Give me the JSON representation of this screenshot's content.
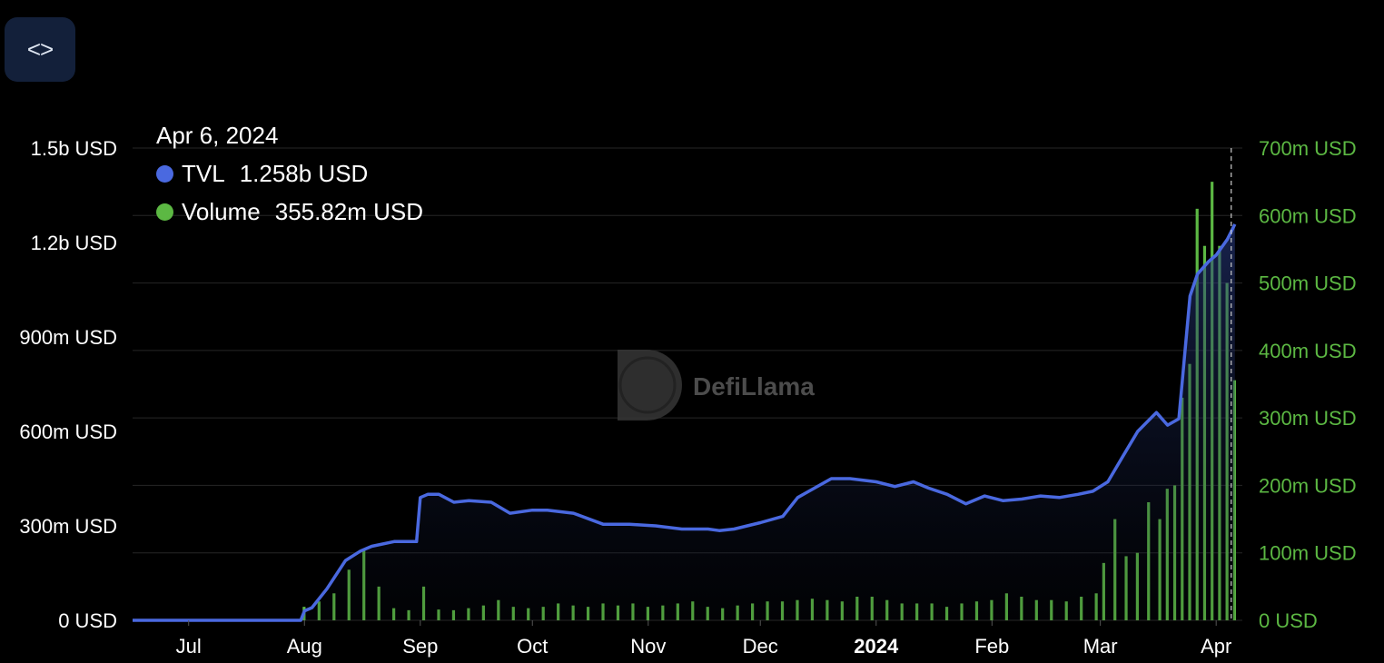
{
  "embed_button": {
    "label": "<>",
    "icon": "code-brackets-icon"
  },
  "tooltip": {
    "date": "Apr 6, 2024",
    "items": [
      {
        "label": "TVL",
        "value": "1.258b USD",
        "color": "#4a69e0"
      },
      {
        "label": "Volume",
        "value": "355.82m USD",
        "color": "#5cb843"
      }
    ]
  },
  "watermark": {
    "text": "DefiLlama"
  },
  "chart_data": {
    "type": "line+bar",
    "x_ticks": [
      "Jul",
      "Aug",
      "Sep",
      "Oct",
      "Nov",
      "Dec",
      "2024",
      "Feb",
      "Mar",
      "Apr"
    ],
    "left_axis": {
      "ticks": [
        "0 USD",
        "300m USD",
        "600m USD",
        "900m USD",
        "1.2b USD",
        "1.5b USD"
      ],
      "ylim": [
        0,
        1500
      ]
    },
    "right_axis": {
      "ticks": [
        "0 USD",
        "100m USD",
        "200m USD",
        "300m USD",
        "400m USD",
        "500m USD",
        "600m USD",
        "700m USD"
      ],
      "ylim": [
        0,
        700
      ]
    },
    "grid": true,
    "series": [
      {
        "name": "TVL",
        "type": "line",
        "color": "#4a69e0",
        "unit": "m USD",
        "x": [
          "2023-06-16",
          "2023-07-31",
          "2023-08-01",
          "2023-08-03",
          "2023-08-07",
          "2023-08-12",
          "2023-08-16",
          "2023-08-19",
          "2023-08-25",
          "2023-08-31",
          "2023-09-01",
          "2023-09-03",
          "2023-09-06",
          "2023-09-10",
          "2023-09-14",
          "2023-09-20",
          "2023-09-25",
          "2023-10-01",
          "2023-10-05",
          "2023-10-12",
          "2023-10-20",
          "2023-10-27",
          "2023-11-03",
          "2023-11-10",
          "2023-11-17",
          "2023-11-20",
          "2023-11-24",
          "2023-12-01",
          "2023-12-07",
          "2023-12-11",
          "2023-12-14",
          "2023-12-20",
          "2023-12-25",
          "2024-01-01",
          "2024-01-06",
          "2024-01-11",
          "2024-01-15",
          "2024-01-20",
          "2024-01-25",
          "2024-01-30",
          "2024-02-04",
          "2024-02-09",
          "2024-02-14",
          "2024-02-19",
          "2024-02-24",
          "2024-02-28",
          "2024-03-03",
          "2024-03-07",
          "2024-03-11",
          "2024-03-16",
          "2024-03-19",
          "2024-03-22",
          "2024-03-25",
          "2024-03-27",
          "2024-03-30",
          "2024-04-01",
          "2024-04-04",
          "2024-04-06"
        ],
        "y": [
          0,
          0,
          30,
          40,
          100,
          190,
          220,
          235,
          250,
          250,
          390,
          400,
          400,
          375,
          380,
          375,
          340,
          350,
          350,
          340,
          305,
          305,
          300,
          290,
          290,
          285,
          290,
          310,
          330,
          390,
          410,
          450,
          450,
          440,
          425,
          440,
          420,
          400,
          370,
          395,
          380,
          385,
          395,
          390,
          400,
          410,
          440,
          520,
          600,
          660,
          620,
          640,
          1030,
          1100,
          1140,
          1160,
          1210,
          1258
        ]
      },
      {
        "name": "Volume",
        "type": "bar",
        "color": "#5cb843",
        "unit": "m USD",
        "x": [
          "2023-08-01",
          "2023-08-05",
          "2023-08-09",
          "2023-08-13",
          "2023-08-17",
          "2023-08-21",
          "2023-08-25",
          "2023-08-29",
          "2023-09-02",
          "2023-09-06",
          "2023-09-10",
          "2023-09-14",
          "2023-09-18",
          "2023-09-22",
          "2023-09-26",
          "2023-09-30",
          "2023-10-04",
          "2023-10-08",
          "2023-10-12",
          "2023-10-16",
          "2023-10-20",
          "2023-10-24",
          "2023-10-28",
          "2023-11-01",
          "2023-11-05",
          "2023-11-09",
          "2023-11-13",
          "2023-11-17",
          "2023-11-21",
          "2023-11-25",
          "2023-11-29",
          "2023-12-03",
          "2023-12-07",
          "2023-12-11",
          "2023-12-15",
          "2023-12-19",
          "2023-12-23",
          "2023-12-27",
          "2023-12-31",
          "2024-01-04",
          "2024-01-08",
          "2024-01-12",
          "2024-01-16",
          "2024-01-20",
          "2024-01-24",
          "2024-01-28",
          "2024-02-01",
          "2024-02-05",
          "2024-02-09",
          "2024-02-13",
          "2024-02-17",
          "2024-02-21",
          "2024-02-25",
          "2024-02-29",
          "2024-03-02",
          "2024-03-05",
          "2024-03-08",
          "2024-03-11",
          "2024-03-14",
          "2024-03-17",
          "2024-03-19",
          "2024-03-21",
          "2024-03-23",
          "2024-03-25",
          "2024-03-27",
          "2024-03-29",
          "2024-03-31",
          "2024-04-02",
          "2024-04-04",
          "2024-04-06"
        ],
        "y": [
          20,
          28,
          40,
          75,
          105,
          50,
          18,
          15,
          50,
          16,
          15,
          18,
          22,
          30,
          20,
          18,
          20,
          25,
          22,
          20,
          25,
          22,
          25,
          20,
          22,
          25,
          28,
          20,
          18,
          22,
          25,
          28,
          28,
          30,
          32,
          30,
          28,
          35,
          35,
          30,
          25,
          25,
          25,
          20,
          25,
          28,
          30,
          40,
          35,
          30,
          30,
          28,
          35,
          40,
          85,
          150,
          95,
          100,
          175,
          150,
          195,
          200,
          330,
          380,
          610,
          555,
          650,
          555,
          500,
          355.82
        ]
      }
    ]
  }
}
